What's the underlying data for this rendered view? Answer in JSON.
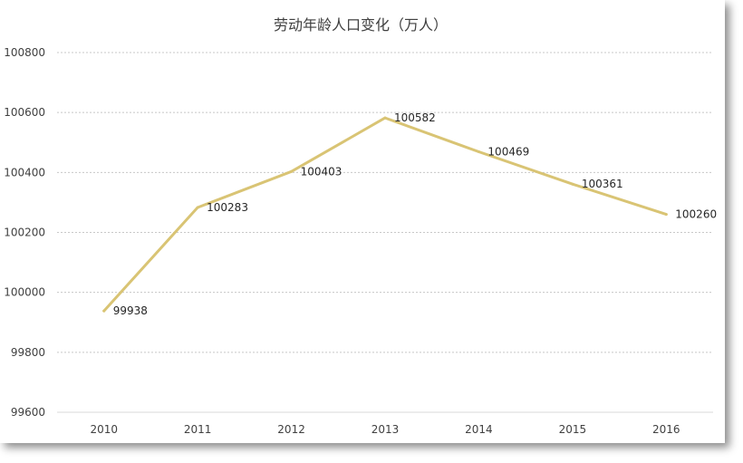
{
  "chart_data": {
    "type": "line",
    "title": "劳动年龄人口变化（万人）",
    "categories": [
      "2010",
      "2011",
      "2012",
      "2013",
      "2014",
      "2015",
      "2016"
    ],
    "series": [
      {
        "values": [
          99938,
          100283,
          100403,
          100582,
          100469,
          100361,
          100260
        ],
        "labels": [
          "99938",
          "100283",
          "100403",
          "100582",
          "100469",
          "100361",
          "100260"
        ],
        "color": "#d9c474"
      }
    ],
    "ylim": [
      99600,
      100800
    ],
    "yticks": [
      {
        "value": 100800,
        "label": "100800"
      },
      {
        "value": 100600,
        "label": "100600"
      },
      {
        "value": 100400,
        "label": "100400"
      },
      {
        "value": 100200,
        "label": "100200"
      },
      {
        "value": 100000,
        "label": "100000"
      },
      {
        "value": 99800,
        "label": "99800"
      },
      {
        "value": 99600,
        "label": "99600"
      }
    ],
    "grid": true,
    "legend": "none"
  }
}
